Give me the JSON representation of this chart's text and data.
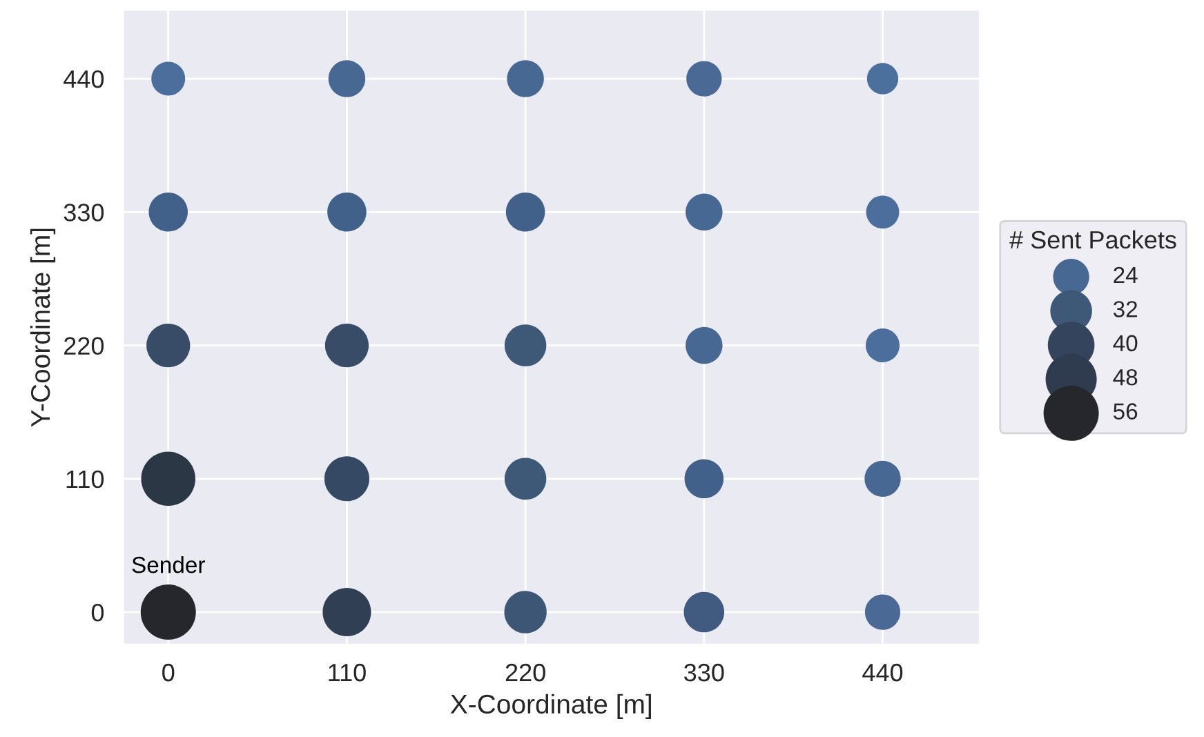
{
  "chart_data": {
    "type": "bubble",
    "xlabel": "X-Coordinate [m]",
    "ylabel": "Y-Coordinate [m]",
    "legend_title": "# Sent Packets",
    "x": [
      0,
      110,
      220,
      330,
      440,
      0,
      110,
      220,
      330,
      440,
      0,
      110,
      220,
      330,
      440,
      0,
      110,
      220,
      330,
      440,
      0,
      110,
      220,
      330,
      440
    ],
    "values": [
      440,
      440,
      440,
      440,
      440,
      330,
      330,
      330,
      330,
      330,
      220,
      220,
      220,
      220,
      220,
      110,
      110,
      110,
      110,
      110,
      0,
      0,
      0,
      0,
      0
    ],
    "sizes": [
      21,
      25,
      25,
      23,
      18,
      28,
      28,
      28,
      25,
      20,
      35,
      35,
      32,
      25,
      21,
      54,
      37,
      32,
      28,
      24,
      56,
      43,
      33,
      30,
      23
    ],
    "colors": [
      "#4b6e9c",
      "#466893",
      "#466893",
      "#4a6a95",
      "#4c709e",
      "#42618a",
      "#42618a",
      "#42618a",
      "#466893",
      "#4b6e9c",
      "#384c68",
      "#384c68",
      "#3e5878",
      "#466893",
      "#4b6e9c",
      "#2c3746",
      "#364964",
      "#3e5878",
      "#42618a",
      "#466893",
      "#25272d",
      "#313f54",
      "#3d5676",
      "#415a80",
      "#4a6a95"
    ],
    "size_legend": [
      24,
      32,
      40,
      48,
      56
    ],
    "annotations": [
      {
        "text": "Sender",
        "x": 0,
        "y": 0
      }
    ],
    "xlim": [
      -28,
      500
    ],
    "ylim": [
      -27,
      497
    ],
    "xticks": [
      0,
      110,
      220,
      330,
      440
    ],
    "yticks": [
      0,
      110,
      220,
      330,
      440
    ],
    "grid": true
  }
}
